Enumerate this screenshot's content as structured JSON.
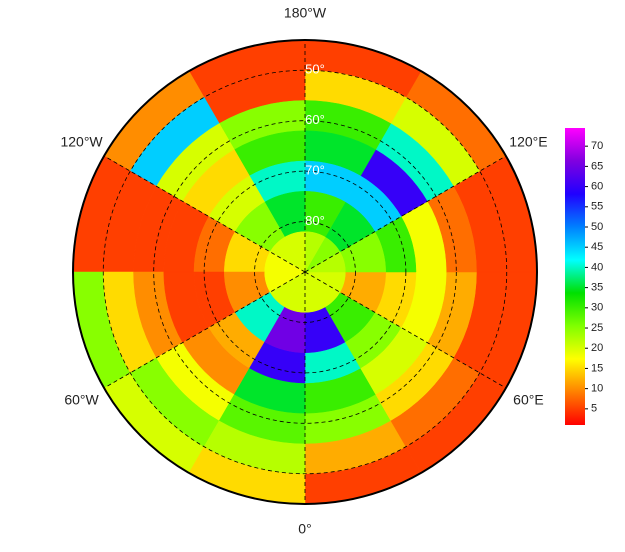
{
  "map_data": {
    "lon_labels": [
      {
        "value": 180,
        "label": "180°W"
      },
      {
        "value": -120,
        "label": "120°W"
      },
      {
        "value": 120,
        "label": "120°E"
      },
      {
        "value": -60,
        "label": "60°W"
      },
      {
        "value": 60,
        "label": "60°E"
      },
      {
        "value": 0,
        "label": "0°"
      }
    ],
    "lat_labels": [
      {
        "value": 50,
        "label": "50°"
      },
      {
        "value": 60,
        "label": "60°"
      },
      {
        "value": 70,
        "label": "70°"
      },
      {
        "value": 80,
        "label": "80°"
      }
    ],
    "lat_edges": [
      44,
      50,
      56,
      62,
      68,
      74,
      82,
      90
    ],
    "lon_edges": [
      0,
      30,
      60,
      90,
      120,
      150,
      180,
      210,
      240,
      270,
      300,
      330,
      360
    ],
    "values": [
      [
        5,
        12,
        25,
        30,
        40,
        60,
        20
      ],
      [
        5,
        8,
        15,
        20,
        25,
        30,
        20
      ],
      [
        5,
        5,
        12,
        18,
        15,
        12,
        20
      ],
      [
        5,
        5,
        8,
        18,
        30,
        25,
        22
      ],
      [
        8,
        20,
        40,
        60,
        45,
        35,
        25
      ],
      [
        5,
        15,
        30,
        35,
        45,
        30,
        22
      ],
      [
        5,
        5,
        25,
        30,
        40,
        35,
        20
      ],
      [
        10,
        45,
        20,
        15,
        20,
        25,
        20
      ],
      [
        5,
        5,
        5,
        5,
        8,
        15,
        18
      ],
      [
        25,
        15,
        10,
        5,
        5,
        10,
        18
      ],
      [
        20,
        25,
        18,
        10,
        12,
        40,
        20
      ],
      [
        15,
        22,
        28,
        35,
        60,
        65,
        20
      ]
    ],
    "colorbar": {
      "clim": [
        1,
        74.5
      ],
      "ticks": [
        5,
        10,
        15,
        20,
        25,
        30,
        35,
        40,
        45,
        50,
        55,
        60,
        65,
        70
      ],
      "colors": [
        "#ff0000",
        "#ff8000",
        "#ffff00",
        "#80ff00",
        "#00e000",
        "#00ffff",
        "#0080ff",
        "#2000ff",
        "#8000e0",
        "#ff00ff"
      ]
    }
  }
}
